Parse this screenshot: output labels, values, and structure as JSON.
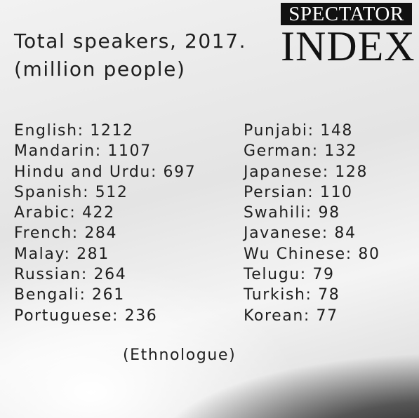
{
  "logo": {
    "top": "SPECTATOR",
    "bottom": "INDEX"
  },
  "header": {
    "title": [
      "Total speakers, 2017.",
      "(million people)"
    ]
  },
  "list": {
    "left": [
      "English: 1212",
      "Mandarin: 1107",
      "Hindu and Urdu: 697",
      "Spanish: 512",
      "Arabic: 422",
      "French: 284",
      "Malay: 281",
      "Russian: 264",
      "Bengali: 261",
      "Portuguese: 236"
    ],
    "right": [
      "Punjabi: 148",
      "German: 132",
      "Japanese: 128",
      "Persian: 110",
      "Swahili: 98",
      "Javanese: 84",
      "Wu Chinese: 80",
      "Telugu: 79",
      "Turkish: 78",
      "Korean: 77"
    ]
  },
  "source": "(Ethnologue)"
}
